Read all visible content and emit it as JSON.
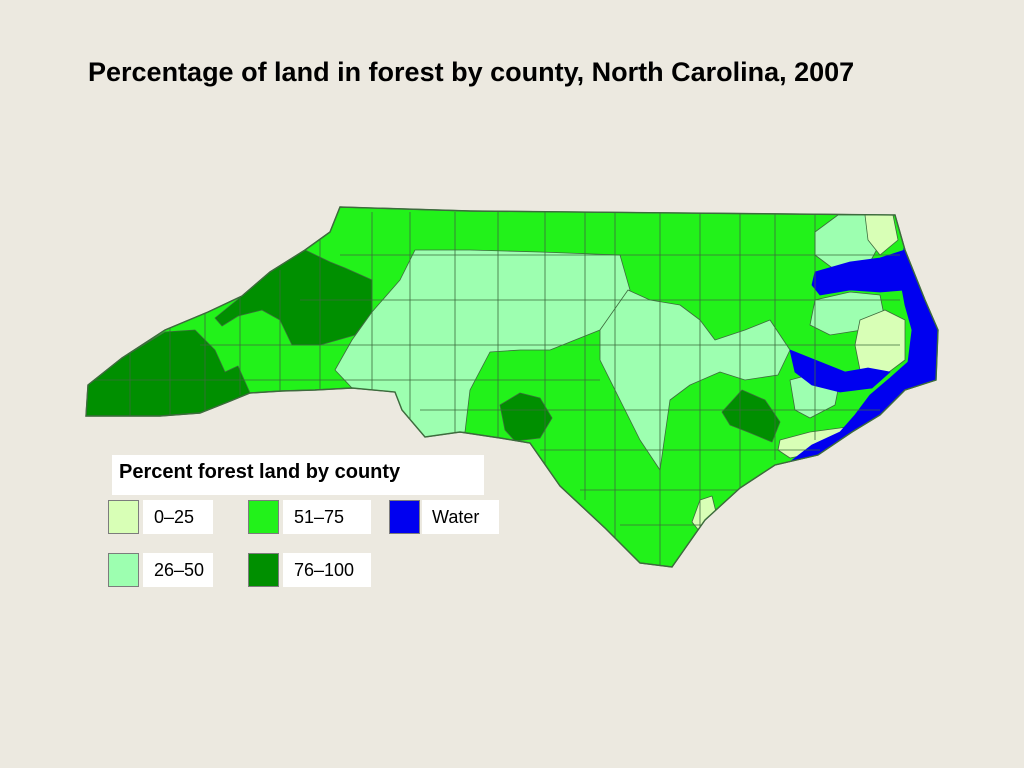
{
  "title": "Percentage of land in forest by county, North Carolina, 2007",
  "legend": {
    "title": "Percent forest land by county",
    "items": [
      {
        "label": "0–25",
        "color": "#d8ffb6"
      },
      {
        "label": "26–50",
        "color": "#9dffb0"
      },
      {
        "label": "51–75",
        "color": "#22f21a"
      },
      {
        "label": "76–100",
        "color": "#008f00"
      },
      {
        "label": "Water",
        "color": "#0000f0"
      }
    ]
  },
  "colors": {
    "background": "#ece9e0",
    "border": "#3d6b3d"
  }
}
